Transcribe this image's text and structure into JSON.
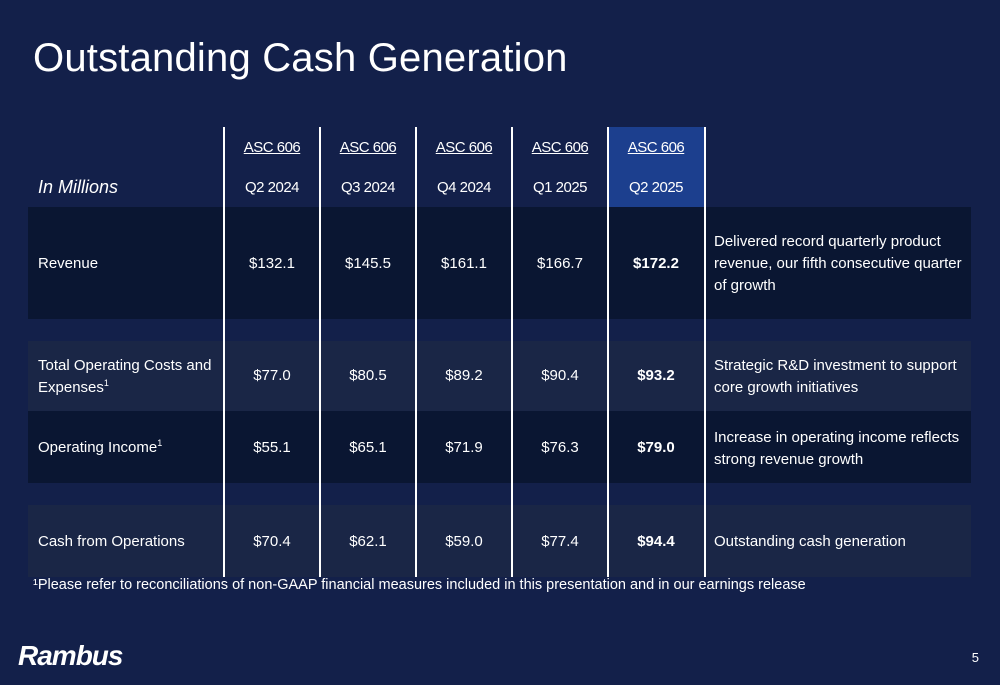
{
  "title": "Outstanding Cash Generation",
  "table": {
    "units_label": "In Millions",
    "columns": [
      {
        "basis": "ASC 606",
        "period": "Q2 2024"
      },
      {
        "basis": "ASC 606",
        "period": "Q3 2024"
      },
      {
        "basis": "ASC 606",
        "period": "Q4 2024"
      },
      {
        "basis": "ASC 606",
        "period": "Q1 2025"
      },
      {
        "basis": "ASC 606",
        "period": "Q2 2025"
      }
    ],
    "rows": [
      {
        "label": "Revenue",
        "values": [
          "$132.1",
          "$145.5",
          "$161.1",
          "$166.7",
          "$172.2"
        ],
        "comment": "Delivered record quarterly product revenue, our fifth consecutive quarter of growth"
      },
      {
        "label": "Total Operating Costs and Expenses",
        "footnote_mark": "1",
        "values": [
          "$77.0",
          "$80.5",
          "$89.2",
          "$90.4",
          "$93.2"
        ],
        "comment": "Strategic R&D investment to support core growth initiatives"
      },
      {
        "label": "Operating Income",
        "footnote_mark": "1",
        "values": [
          "$55.1",
          "$65.1",
          "$71.9",
          "$76.3",
          "$79.0"
        ],
        "comment": "Increase in operating income reflects strong revenue growth"
      },
      {
        "label": "Cash from Operations",
        "values": [
          "$70.4",
          "$62.1",
          "$59.0",
          "$77.4",
          "$94.4"
        ],
        "comment": "Outstanding cash generation"
      }
    ]
  },
  "footnote": "¹Please refer to reconciliations of non-GAAP financial measures included in this presentation and in our earnings release",
  "logo_text": "Rambus",
  "page_number": "5",
  "colors": {
    "background": "#13204a",
    "dark_band": "#0a1632",
    "light_band": "#1a2646",
    "highlight_column": "#1c3f8e",
    "text": "#ffffff"
  }
}
